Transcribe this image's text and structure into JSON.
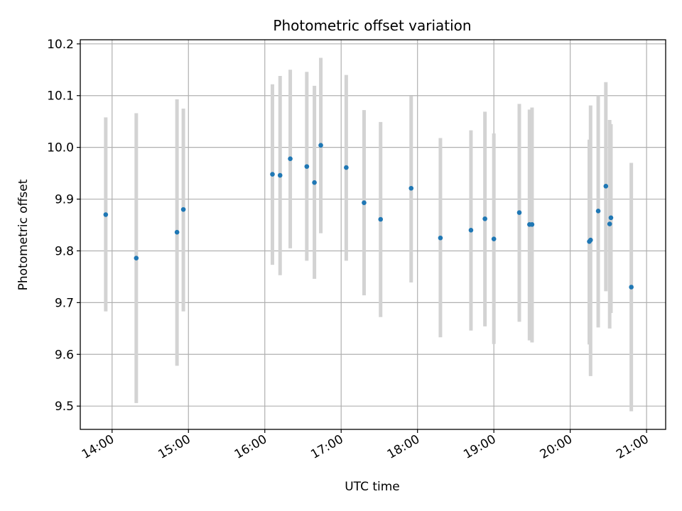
{
  "chart_data": {
    "type": "scatter",
    "title": "Photometric offset variation",
    "xlabel": "UTC time",
    "ylabel": "Photometric offset",
    "xlim": [
      "13:35",
      "21:15"
    ],
    "ylim": [
      9.455,
      10.208
    ],
    "x_ticks": [
      "14:00",
      "15:00",
      "16:00",
      "17:00",
      "18:00",
      "19:00",
      "20:00",
      "21:00"
    ],
    "y_ticks": [
      "9.5",
      "9.6",
      "9.7",
      "9.8",
      "9.9",
      "10.0",
      "10.1",
      "10.2"
    ],
    "grid": true,
    "colors": {
      "points": "#1f77b4",
      "errorbars": "#d3d3d3",
      "grid": "#b0b0b0"
    },
    "points": [
      {
        "x": "13:55",
        "y": 9.87,
        "low": 9.683,
        "high": 10.058
      },
      {
        "x": "14:19",
        "y": 9.786,
        "low": 9.506,
        "high": 10.066
      },
      {
        "x": "14:51",
        "y": 9.836,
        "low": 9.578,
        "high": 10.093
      },
      {
        "x": "14:56",
        "y": 9.88,
        "low": 9.683,
        "high": 10.075
      },
      {
        "x": "16:06",
        "y": 9.948,
        "low": 9.773,
        "high": 10.122
      },
      {
        "x": "16:12",
        "y": 9.946,
        "low": 9.753,
        "high": 10.138
      },
      {
        "x": "16:20",
        "y": 9.978,
        "low": 9.805,
        "high": 10.15
      },
      {
        "x": "16:33",
        "y": 9.963,
        "low": 9.781,
        "high": 10.146
      },
      {
        "x": "16:39",
        "y": 9.932,
        "low": 9.746,
        "high": 10.119
      },
      {
        "x": "16:44",
        "y": 10.004,
        "low": 9.834,
        "high": 10.173
      },
      {
        "x": "17:04",
        "y": 9.961,
        "low": 9.781,
        "high": 10.14
      },
      {
        "x": "17:18",
        "y": 9.893,
        "low": 9.714,
        "high": 10.072
      },
      {
        "x": "17:31",
        "y": 9.861,
        "low": 9.672,
        "high": 10.049
      },
      {
        "x": "17:55",
        "y": 9.921,
        "low": 9.739,
        "high": 10.099
      },
      {
        "x": "18:18",
        "y": 9.825,
        "low": 9.633,
        "high": 10.018
      },
      {
        "x": "18:42",
        "y": 9.84,
        "low": 9.646,
        "high": 10.033
      },
      {
        "x": "18:53",
        "y": 9.862,
        "low": 9.654,
        "high": 10.069
      },
      {
        "x": "19:00",
        "y": 9.823,
        "low": 9.62,
        "high": 10.027
      },
      {
        "x": "19:20",
        "y": 9.874,
        "low": 9.663,
        "high": 10.084
      },
      {
        "x": "19:28",
        "y": 9.851,
        "low": 9.627,
        "high": 10.073
      },
      {
        "x": "19:30",
        "y": 9.851,
        "low": 9.623,
        "high": 10.077
      },
      {
        "x": "20:15",
        "y": 9.818,
        "low": 9.619,
        "high": 10.015
      },
      {
        "x": "20:16",
        "y": 9.821,
        "low": 9.558,
        "high": 10.081
      },
      {
        "x": "20:22",
        "y": 9.877,
        "low": 9.652,
        "high": 10.1
      },
      {
        "x": "20:28",
        "y": 9.925,
        "low": 9.722,
        "high": 10.126
      },
      {
        "x": "20:31",
        "y": 9.852,
        "low": 9.65,
        "high": 10.053
      },
      {
        "x": "20:32",
        "y": 9.864,
        "low": 9.68,
        "high": 10.045
      },
      {
        "x": "20:48",
        "y": 9.73,
        "low": 9.49,
        "high": 9.97
      }
    ]
  }
}
